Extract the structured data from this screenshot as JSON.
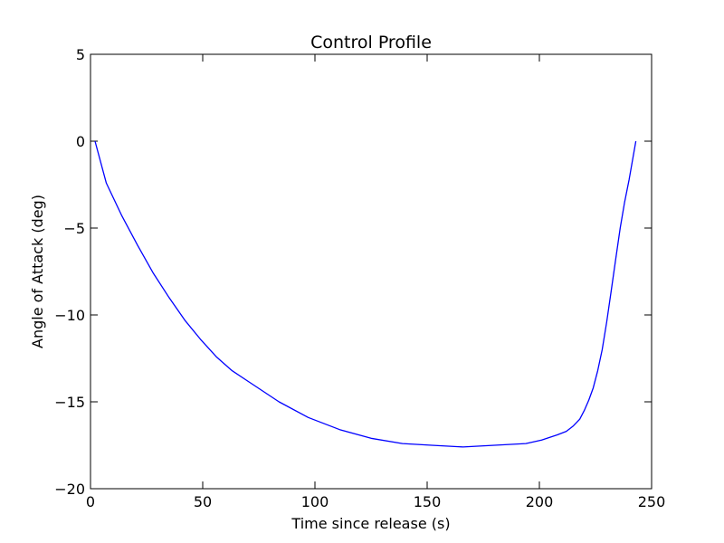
{
  "chart_data": {
    "type": "line",
    "title": "Control Profile",
    "xlabel": "Time since release (s)",
    "ylabel": "Angle of Attack (deg)",
    "xlim": [
      0,
      250
    ],
    "ylim": [
      -20,
      5
    ],
    "xticks": [
      0,
      50,
      100,
      150,
      200,
      250
    ],
    "yticks": [
      5,
      0,
      -5,
      -10,
      -15,
      -20
    ],
    "xtick_labels": [
      "0",
      "50",
      "100",
      "150",
      "200",
      "250"
    ],
    "ytick_labels": [
      "5",
      "0",
      "−5",
      "−10",
      "−15",
      "−20"
    ],
    "grid": false,
    "legend": "none",
    "series": [
      {
        "color": "#0000ff",
        "x": [
          2,
          7,
          14,
          21,
          28,
          35,
          42,
          49,
          56,
          63,
          70,
          84,
          97,
          111,
          125,
          139,
          152,
          166,
          180,
          194,
          201,
          208,
          212,
          215,
          218,
          220,
          222,
          224,
          226,
          228,
          230,
          232,
          234,
          236,
          238,
          240,
          243
        ],
        "y": [
          0,
          -2.4,
          -4.3,
          -6.0,
          -7.6,
          -9.0,
          -10.3,
          -11.4,
          -12.4,
          -13.2,
          -13.8,
          -15.0,
          -15.9,
          -16.6,
          -17.1,
          -17.4,
          -17.5,
          -17.6,
          -17.5,
          -17.4,
          -17.2,
          -16.9,
          -16.7,
          -16.4,
          -16.0,
          -15.5,
          -14.9,
          -14.2,
          -13.2,
          -12.0,
          -10.4,
          -8.6,
          -6.8,
          -5.0,
          -3.5,
          -2.2,
          0
        ]
      }
    ]
  }
}
